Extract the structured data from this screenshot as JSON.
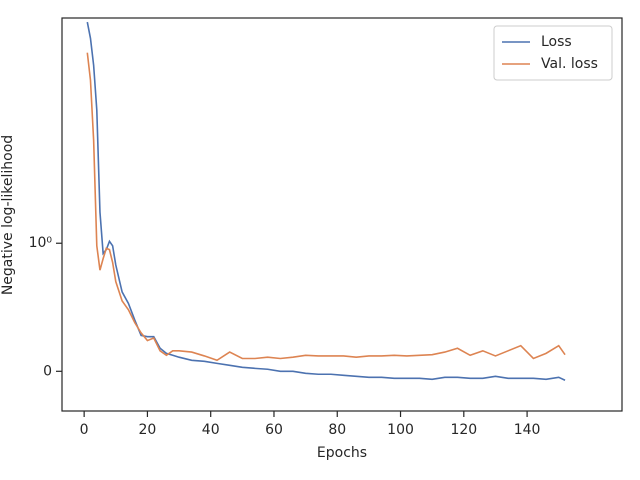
{
  "chart_data": {
    "type": "line",
    "xlabel": "Epochs",
    "ylabel": "Negative log-likelihood",
    "x": [
      1,
      2,
      3,
      4,
      5,
      6,
      7,
      8,
      9,
      10,
      12,
      14,
      16,
      18,
      20,
      22,
      24,
      26,
      28,
      30,
      34,
      38,
      42,
      46,
      50,
      54,
      58,
      62,
      66,
      70,
      74,
      78,
      82,
      86,
      90,
      94,
      98,
      102,
      106,
      110,
      114,
      118,
      122,
      126,
      130,
      134,
      138,
      142,
      146,
      150,
      152
    ],
    "series": [
      {
        "name": "Loss",
        "color": "#4c72b0",
        "values": [
          83,
          60,
          35,
          14.3,
          1.86,
          0.92,
          0.95,
          1.04,
          0.98,
          0.83,
          0.62,
          0.53,
          0.4,
          0.28,
          0.27,
          0.27,
          0.18,
          0.14,
          0.125,
          0.11,
          0.086,
          0.078,
          0.062,
          0.047,
          0.031,
          0.023,
          0.016,
          0,
          0,
          -0.016,
          -0.023,
          -0.023,
          -0.031,
          -0.039,
          -0.047,
          -0.047,
          -0.055,
          -0.055,
          -0.055,
          -0.0625,
          -0.047,
          -0.047,
          -0.055,
          -0.055,
          -0.039,
          -0.055,
          -0.055,
          -0.055,
          -0.0625,
          -0.047,
          -0.07
        ]
      },
      {
        "name": "Val. loss",
        "color": "#dd8452",
        "values": [
          45,
          26,
          7.8,
          0.98,
          0.79,
          0.88,
          0.96,
          0.95,
          0.85,
          0.7,
          0.55,
          0.48,
          0.38,
          0.3,
          0.24,
          0.26,
          0.16,
          0.125,
          0.16,
          0.16,
          0.15,
          0.12,
          0.086,
          0.15,
          0.1,
          0.1,
          0.11,
          0.1,
          0.11,
          0.125,
          0.12,
          0.12,
          0.12,
          0.11,
          0.12,
          0.12,
          0.125,
          0.12,
          0.125,
          0.13,
          0.15,
          0.18,
          0.125,
          0.16,
          0.12,
          0.16,
          0.2,
          0.1,
          0.14,
          0.2,
          0.13
        ]
      }
    ],
    "xlim": [
      -7,
      170
    ],
    "xticks": [
      0,
      20,
      40,
      60,
      80,
      100,
      120,
      140
    ],
    "yscale": "symlog",
    "linthresh": 1,
    "ylim": [
      -0.31,
      90
    ],
    "yticks": [
      0,
      {
        "value": 1,
        "label": "10⁰"
      }
    ],
    "legend": "upper right"
  }
}
